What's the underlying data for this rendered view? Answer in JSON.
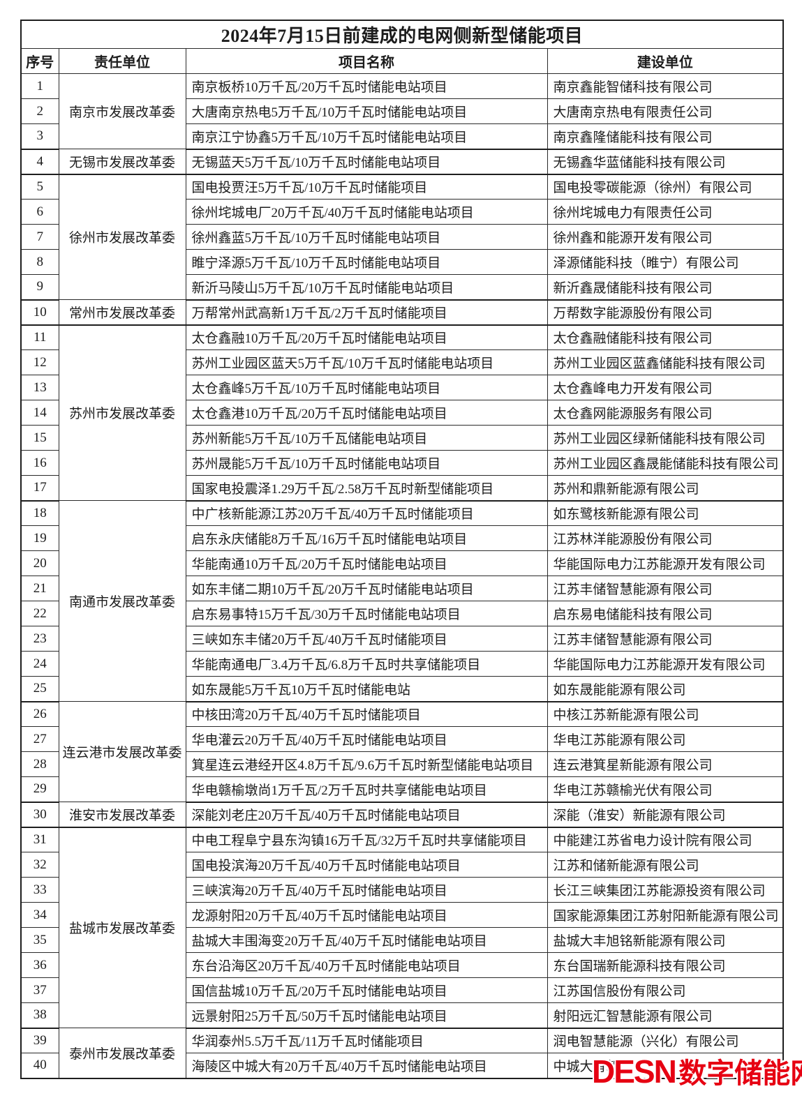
{
  "title": "2024年7月15日前建成的电网侧新型储能项目",
  "columns": [
    "序号",
    "责任单位",
    "项目名称",
    "建设单位"
  ],
  "watermark": {
    "logo": "DESN",
    "name": "数字储能网",
    "color": "#e60012"
  },
  "sections": [
    {
      "unit": "南京市发展改革委",
      "rows": [
        {
          "no": "1",
          "project": "南京板桥10万千瓦/20万千瓦时储能电站项目",
          "builder": "南京鑫能智储科技有限公司"
        },
        {
          "no": "2",
          "project": "大唐南京热电5万千瓦/10万千瓦时储能电站项目",
          "builder": "大唐南京热电有限责任公司"
        },
        {
          "no": "3",
          "project": "南京江宁协鑫5万千瓦/10万千瓦时储能电站项目",
          "builder": "南京鑫隆储能科技有限公司"
        }
      ]
    },
    {
      "unit": "无锡市发展改革委",
      "rows": [
        {
          "no": "4",
          "project": "无锡蓝天5万千瓦/10万千瓦时储能电站项目",
          "builder": "无锡鑫华蓝储能科技有限公司"
        }
      ]
    },
    {
      "unit": "徐州市发展改革委",
      "rows": [
        {
          "no": "5",
          "project": "国电投贾汪5万千瓦/10万千瓦时储能项目",
          "builder": "国电投零碳能源（徐州）有限公司"
        },
        {
          "no": "6",
          "project": "徐州垞城电厂20万千瓦/40万千瓦时储能电站项目",
          "builder": "徐州垞城电力有限责任公司"
        },
        {
          "no": "7",
          "project": "徐州鑫蓝5万千瓦/10万千瓦时储能电站项目",
          "builder": "徐州鑫和能源开发有限公司"
        },
        {
          "no": "8",
          "project": "睢宁泽源5万千瓦/10万千瓦时储能电站项目",
          "builder": "泽源储能科技（睢宁）有限公司"
        },
        {
          "no": "9",
          "project": "新沂马陵山5万千瓦/10万千瓦时储能电站项目",
          "builder": "新沂鑫晟储能科技有限公司"
        }
      ]
    },
    {
      "unit": "常州市发展改革委",
      "rows": [
        {
          "no": "10",
          "project": "万帮常州武高新1万千瓦/2万千瓦时储能项目",
          "builder": "万帮数字能源股份有限公司"
        }
      ]
    },
    {
      "unit": "苏州市发展改革委",
      "rows": [
        {
          "no": "11",
          "project": "太仓鑫融10万千瓦/20万千瓦时储能电站项目",
          "builder": "太仓鑫融储能科技有限公司"
        },
        {
          "no": "12",
          "project": "苏州工业园区蓝天5万千瓦/10万千瓦时储能电站项目",
          "builder": "苏州工业园区蓝鑫储能科技有限公司"
        },
        {
          "no": "13",
          "project": "太仓鑫峰5万千瓦/10万千瓦时储能电站项目",
          "builder": "太仓鑫峰电力开发有限公司"
        },
        {
          "no": "14",
          "project": "太仓鑫港10万千瓦/20万千瓦时储能电站项目",
          "builder": "太仓鑫网能源服务有限公司"
        },
        {
          "no": "15",
          "project": "苏州新能5万千瓦/10万千瓦储能电站项目",
          "builder": "苏州工业园区绿新储能科技有限公司"
        },
        {
          "no": "16",
          "project": "苏州晟能5万千瓦/10万千瓦时储能电站项目",
          "builder": "苏州工业园区鑫晟能储能科技有限公司"
        },
        {
          "no": "17",
          "project": "国家电投震泽1.29万千瓦/2.58万千瓦时新型储能项目",
          "builder": "苏州和鼎新能源有限公司"
        }
      ]
    },
    {
      "unit": "南通市发展改革委",
      "rows": [
        {
          "no": "18",
          "project": "中广核新能源江苏20万千瓦/40万千瓦时储能项目",
          "builder": "如东鹭核新能源有限公司"
        },
        {
          "no": "19",
          "project": "启东永庆储能8万千瓦/16万千瓦时储能电站项目",
          "builder": "江苏林洋能源股份有限公司"
        },
        {
          "no": "20",
          "project": "华能南通10万千瓦/20万千瓦时储能电站项目",
          "builder": "华能国际电力江苏能源开发有限公司"
        },
        {
          "no": "21",
          "project": "如东丰储二期10万千瓦/20万千瓦时储能电站项目",
          "builder": "江苏丰储智慧能源有限公司"
        },
        {
          "no": "22",
          "project": "启东易事特15万千瓦/30万千瓦时储能电站项目",
          "builder": "启东易电储能科技有限公司"
        },
        {
          "no": "23",
          "project": "三峡如东丰储20万千瓦/40万千瓦时储能项目",
          "builder": "江苏丰储智慧能源有限公司"
        },
        {
          "no": "24",
          "project": "华能南通电厂3.4万千瓦/6.8万千瓦时共享储能项目",
          "builder": "华能国际电力江苏能源开发有限公司"
        },
        {
          "no": "25",
          "project": "如东晟能5万千瓦10万千瓦时储能电站",
          "builder": "如东晟能能源有限公司"
        }
      ]
    },
    {
      "unit": "连云港市发展改革委",
      "rows": [
        {
          "no": "26",
          "project": "中核田湾20万千瓦/40万千瓦时储能项目",
          "builder": "中核江苏新能源有限公司"
        },
        {
          "no": "27",
          "project": "华电灌云20万千瓦/40万千瓦时储能电站项目",
          "builder": "华电江苏能源有限公司"
        },
        {
          "no": "28",
          "project": "箕星连云港经开区4.8万千瓦/9.6万千瓦时新型储能电站项目",
          "builder": "连云港箕星新能源有限公司"
        },
        {
          "no": "29",
          "project": "华电赣榆墩尚1万千瓦/2万千瓦时共享储能电站项目",
          "builder": "华电江苏赣榆光伏有限公司"
        }
      ]
    },
    {
      "unit": "淮安市发展改革委",
      "rows": [
        {
          "no": "30",
          "project": "深能刘老庄20万千瓦/40万千瓦时储能电站项目",
          "builder": "深能（淮安）新能源有限公司"
        }
      ]
    },
    {
      "unit": "盐城市发展改革委",
      "rows": [
        {
          "no": "31",
          "project": "中电工程阜宁县东沟镇16万千瓦/32万千瓦时共享储能项目",
          "builder": "中能建江苏省电力设计院有限公司"
        },
        {
          "no": "32",
          "project": "国电投滨海20万千瓦/40万千瓦时储能电站项目",
          "builder": "江苏和储新能源有限公司"
        },
        {
          "no": "33",
          "project": "三峡滨海20万千瓦/40万千瓦时储能电站项目",
          "builder": "长江三峡集团江苏能源投资有限公司"
        },
        {
          "no": "34",
          "project": "龙源射阳20万千瓦/40万千瓦时储能电站项目",
          "builder": "国家能源集团江苏射阳新能源有限公司"
        },
        {
          "no": "35",
          "project": "盐城大丰围海变20万千瓦/40万千瓦时储能电站项目",
          "builder": "盐城大丰旭铭新能源有限公司"
        },
        {
          "no": "36",
          "project": "东台沿海区20万千瓦/40万千瓦时储能电站项目",
          "builder": "东台国瑞新能源科技有限公司"
        },
        {
          "no": "37",
          "project": "国信盐城10万千瓦/20万千瓦时储能电站项目",
          "builder": "江苏国信股份有限公司"
        },
        {
          "no": "38",
          "project": "远景射阳25万千瓦/50万千瓦时储能电站项目",
          "builder": "射阳远汇智慧能源有限公司"
        }
      ]
    },
    {
      "unit": "泰州市发展改革委",
      "rows": [
        {
          "no": "39",
          "project": "华润泰州5.5万千瓦/11万千瓦时储能项目",
          "builder": "润电智慧能源（兴化）有限公司"
        },
        {
          "no": "40",
          "project": "海陵区中城大有20万千瓦/40万千瓦时储能电站项目",
          "builder": "中城大有新"
        }
      ]
    }
  ]
}
